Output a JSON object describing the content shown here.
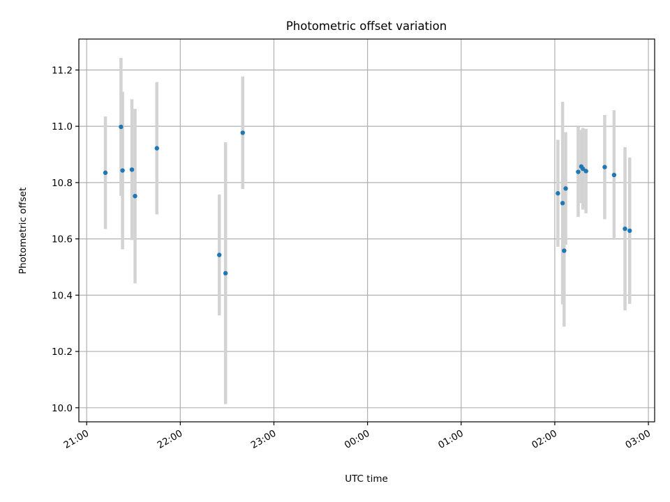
{
  "chart_data": {
    "type": "scatter",
    "title": "Photometric offset variation",
    "xlabel": "UTC time",
    "ylabel": "Photometric offset",
    "x_tick_labels": [
      "21:00",
      "22:00",
      "23:00",
      "00:00",
      "01:00",
      "02:00",
      "03:00"
    ],
    "y_tick_labels": [
      "10.0",
      "10.2",
      "10.4",
      "10.6",
      "10.8",
      "11.0",
      "11.2"
    ],
    "x_range": [
      "20:55",
      "03:04"
    ],
    "ylim": [
      9.95,
      11.31
    ],
    "grid": true,
    "error_bar_color": "#d3d3d3",
    "point_color": "#1f77b4",
    "points": [
      {
        "t": "21:12",
        "y": 10.835,
        "err": 0.2
      },
      {
        "t": "21:22",
        "y": 10.998,
        "err": 0.245
      },
      {
        "t": "21:23",
        "y": 10.843,
        "err": 0.28
      },
      {
        "t": "21:29",
        "y": 10.846,
        "err": 0.25
      },
      {
        "t": "21:31",
        "y": 10.752,
        "err": 0.31
      },
      {
        "t": "21:45",
        "y": 10.922,
        "err": 0.235
      },
      {
        "t": "22:25",
        "y": 10.543,
        "err": 0.215
      },
      {
        "t": "22:29",
        "y": 10.478,
        "err": 0.465
      },
      {
        "t": "22:40",
        "y": 10.977,
        "err": 0.2
      },
      {
        "t": "02:02",
        "y": 10.762,
        "err": 0.19
      },
      {
        "t": "02:05",
        "y": 10.727,
        "err": 0.36
      },
      {
        "t": "02:06",
        "y": 10.558,
        "err": 0.27
      },
      {
        "t": "02:07",
        "y": 10.779,
        "err": 0.2
      },
      {
        "t": "02:15",
        "y": 10.838,
        "err": 0.16
      },
      {
        "t": "02:17",
        "y": 10.857,
        "err": 0.13
      },
      {
        "t": "02:18",
        "y": 10.849,
        "err": 0.145
      },
      {
        "t": "02:20",
        "y": 10.841,
        "err": 0.15
      },
      {
        "t": "02:32",
        "y": 10.855,
        "err": 0.185
      },
      {
        "t": "02:38",
        "y": 10.827,
        "err": 0.23
      },
      {
        "t": "02:45",
        "y": 10.636,
        "err": 0.29
      },
      {
        "t": "02:48",
        "y": 10.629,
        "err": 0.26
      }
    ]
  }
}
